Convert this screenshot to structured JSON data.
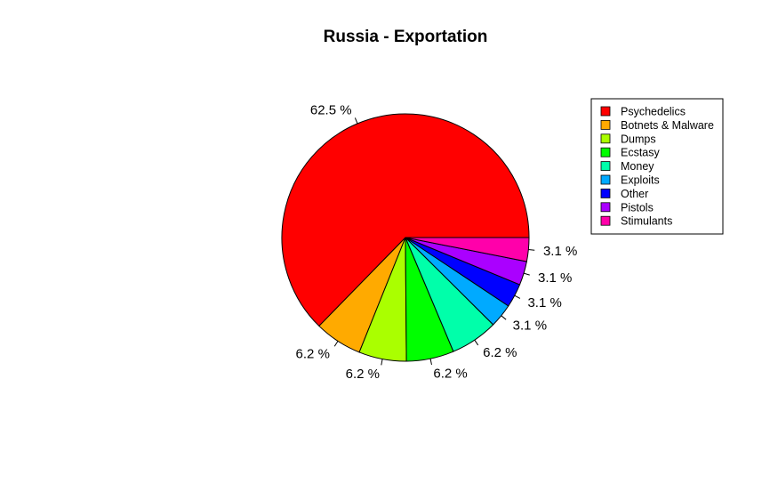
{
  "chart_data": {
    "type": "pie",
    "title": "Russia - Exportation",
    "categories": [
      "Psychedelics",
      "Botnets & Malware",
      "Dumps",
      "Ecstasy",
      "Money",
      "Exploits",
      "Other",
      "Pistols",
      "Stimulants"
    ],
    "values": [
      62.5,
      6.2,
      6.2,
      6.2,
      6.2,
      3.1,
      3.1,
      3.1,
      3.1
    ],
    "labels": [
      "62.5 %",
      "6.2 %",
      "6.2 %",
      "6.2 %",
      "6.2 %",
      "3.1 %",
      "3.1 %",
      "3.1 %",
      "3.1 %"
    ],
    "colors": [
      "#FF0000",
      "#FFAA00",
      "#AAFF00",
      "#00FF00",
      "#00FFAA",
      "#00AAFF",
      "#0000FF",
      "#AA00FF",
      "#FF00AA"
    ],
    "legend_position": "top-right",
    "slice_order": "counterclockwise from 0 degrees (3 o'clock)"
  }
}
